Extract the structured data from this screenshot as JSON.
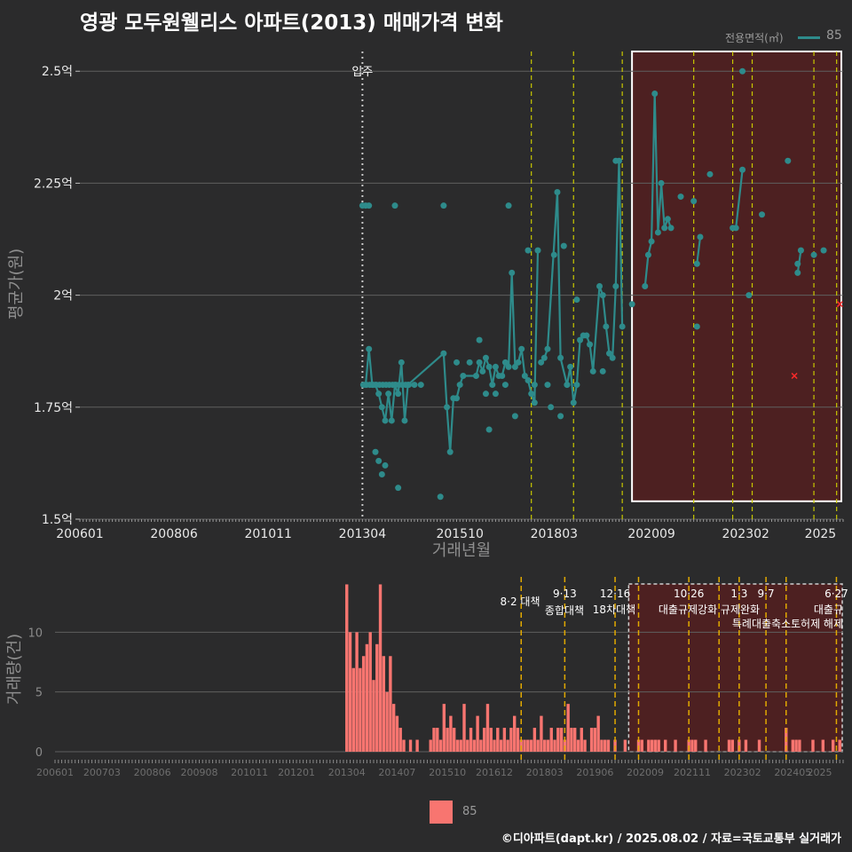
{
  "title": "영광 모두원웰리스 아파트(2013) 매매가격 변화",
  "legend": {
    "title": "전용면적(㎡)",
    "series": "85"
  },
  "footer": "©디아파트(dapt.kr) / 2025.08.02 / 자료=국토교통부 실거래가",
  "colors": {
    "background": "#2b2b2c",
    "line": "#2e8b8b",
    "point": "#2e8b8b",
    "bar": "#f87570",
    "policy_line": "#c8c800",
    "policy_line_bottom": "#e1a900",
    "highlight_fill": "#5a1e1e",
    "highlight_border": "#ffffff",
    "marker": "#ff2a2a"
  },
  "chart_data": [
    {
      "type": "line",
      "title": "",
      "xlabel": "거래년월",
      "ylabel": "평균가(원)",
      "x_tick_labels": [
        "200601",
        "200806",
        "201011",
        "201304",
        "201510",
        "201803",
        "202009",
        "202302",
        "2025"
      ],
      "y_tick_labels": [
        "1.5억",
        "1.75억",
        "2억",
        "2.25억",
        "2.5억"
      ],
      "y_ticks": [
        1.5,
        1.75,
        2.0,
        2.25,
        2.5
      ],
      "ylim": [
        1.5,
        2.55
      ],
      "xlim": [
        "2006-01",
        "2025-08"
      ],
      "grid": true,
      "legend_position": "top-right",
      "annotation": "입주",
      "series": [
        {
          "name": "85",
          "line": [
            [
              "2013-05",
              1.8
            ],
            [
              "2013-06",
              1.88
            ],
            [
              "2013-07",
              1.8
            ],
            [
              "2013-08",
              1.8
            ],
            [
              "2013-09",
              1.78
            ],
            [
              "2013-10",
              1.75
            ],
            [
              "2013-11",
              1.72
            ],
            [
              "2013-12",
              1.78
            ],
            [
              "2014-01",
              1.72
            ],
            [
              "2014-02",
              1.8
            ],
            [
              "2014-03",
              1.78
            ],
            [
              "2014-04",
              1.85
            ],
            [
              "2014-05",
              1.72
            ],
            [
              "2014-06",
              1.8
            ],
            [
              "2015-05",
              1.87
            ],
            [
              "2015-06",
              1.75
            ],
            [
              "2015-07",
              1.65
            ],
            [
              "2015-08",
              1.77
            ],
            [
              "2015-09",
              1.77
            ],
            [
              "2015-10",
              1.8
            ],
            [
              "2015-11",
              1.82
            ],
            [
              "2016-03",
              1.82
            ],
            [
              "2016-04",
              1.85
            ],
            [
              "2016-05",
              1.83
            ],
            [
              "2016-06",
              1.86
            ],
            [
              "2016-07",
              1.84
            ],
            [
              "2016-08",
              1.8
            ],
            [
              "2016-09",
              1.84
            ],
            [
              "2016-10",
              1.82
            ],
            [
              "2016-11",
              1.82
            ],
            [
              "2016-12",
              1.85
            ],
            [
              "2017-01",
              1.84
            ],
            [
              "2017-02",
              2.05
            ],
            [
              "2017-03",
              1.84
            ],
            [
              "2017-04",
              1.85
            ],
            [
              "2017-05",
              1.88
            ],
            [
              "2017-06",
              1.82
            ],
            [
              "2017-07",
              1.81
            ],
            [
              "2017-08",
              1.78
            ],
            [
              "2017-09",
              1.76
            ],
            [
              "2017-10",
              2.1
            ]
          ],
          "line2": [
            [
              "2017-11",
              1.85
            ],
            [
              "2017-12",
              1.86
            ],
            [
              "2018-01",
              1.88
            ],
            [
              "2018-04",
              2.23
            ],
            [
              "2018-05",
              1.86
            ],
            [
              "2018-07",
              1.8
            ],
            [
              "2018-08",
              1.84
            ],
            [
              "2018-09",
              1.76
            ],
            [
              "2018-10",
              1.8
            ],
            [
              "2018-11",
              1.9
            ],
            [
              "2018-12",
              1.91
            ],
            [
              "2019-01",
              1.91
            ],
            [
              "2019-02",
              1.89
            ],
            [
              "2019-03",
              1.83
            ],
            [
              "2019-05",
              2.02
            ],
            [
              "2019-06",
              2.0
            ],
            [
              "2019-07",
              1.93
            ],
            [
              "2019-08",
              1.87
            ],
            [
              "2019-09",
              1.86
            ],
            [
              "2019-10",
              2.02
            ],
            [
              "2019-11",
              2.3
            ],
            [
              "2019-12",
              1.93
            ]
          ],
          "line3": [
            [
              "2020-07",
              2.02
            ],
            [
              "2020-08",
              2.09
            ],
            [
              "2020-09",
              2.12
            ],
            [
              "2020-10",
              2.45
            ],
            [
              "2020-11",
              2.14
            ],
            [
              "2020-12",
              2.25
            ],
            [
              "2021-01",
              2.15
            ],
            [
              "2021-02",
              2.17
            ],
            [
              "2021-03",
              2.15
            ]
          ],
          "line4": [
            [
              "2021-11",
              2.07
            ],
            [
              "2021-12",
              2.13
            ]
          ],
          "line5": [
            [
              "2022-10",
              2.15
            ],
            [
              "2022-11",
              2.15
            ],
            [
              "2023-01",
              2.28
            ]
          ],
          "line6": [
            [
              "2024-06",
              2.05
            ],
            [
              "2024-07",
              2.1
            ]
          ],
          "points_extra": [
            [
              "2013-04",
              2.2
            ],
            [
              "2013-05",
              2.2
            ],
            [
              "2013-06",
              2.2
            ],
            [
              "2014-02",
              2.2
            ],
            [
              "2015-05",
              2.2
            ],
            [
              "2017-01",
              2.2
            ],
            [
              "2017-07",
              2.1
            ],
            [
              "2018-03",
              2.09
            ],
            [
              "2018-06",
              2.11
            ],
            [
              "2018-10",
              1.99
            ],
            [
              "2019-10",
              2.3
            ],
            [
              "2020-03",
              1.98
            ],
            [
              "2021-06",
              2.22
            ],
            [
              "2021-10",
              2.21
            ],
            [
              "2021-11",
              1.93
            ],
            [
              "2022-03",
              2.27
            ],
            [
              "2023-01",
              2.5
            ],
            [
              "2023-03",
              2.0
            ],
            [
              "2023-07",
              2.18
            ],
            [
              "2024-03",
              2.3
            ],
            [
              "2024-06",
              2.07
            ],
            [
              "2024-11",
              2.09
            ],
            [
              "2025-02",
              2.1
            ],
            [
              "2013-08",
              1.65
            ],
            [
              "2013-09",
              1.63
            ],
            [
              "2013-10",
              1.6
            ],
            [
              "2013-11",
              1.62
            ],
            [
              "2014-03",
              1.57
            ],
            [
              "2014-08",
              1.8
            ],
            [
              "2014-10",
              1.8
            ],
            [
              "2015-04",
              1.55
            ],
            [
              "2015-09",
              1.85
            ],
            [
              "2016-01",
              1.85
            ],
            [
              "2016-04",
              1.9
            ],
            [
              "2016-06",
              1.78
            ],
            [
              "2016-09",
              1.78
            ],
            [
              "2016-12",
              1.8
            ],
            [
              "2017-03",
              1.73
            ],
            [
              "2017-09",
              1.8
            ],
            [
              "2018-01",
              1.8
            ],
            [
              "2018-02",
              1.75
            ],
            [
              "2018-05",
              1.73
            ],
            [
              "2018-07",
              1.8
            ],
            [
              "2019-06",
              1.83
            ],
            [
              "2016-07",
              1.7
            ]
          ],
          "cross_markers": [
            [
              "2024-05",
              1.82
            ],
            [
              "2025-07",
              1.98
            ]
          ]
        }
      ],
      "policy_lines_top": [
        "2017-08",
        "2018-09",
        "2019-12",
        "2021-10",
        "2022-10",
        "2023-04",
        "2024-11",
        "2025-06"
      ],
      "highlight_range": [
        "2020-03",
        "2025-08"
      ],
      "highlight_yrange": [
        1.54,
        2.55
      ]
    },
    {
      "type": "bar",
      "title": "",
      "xlabel": "",
      "ylabel": "거래량(건)",
      "y_tick_labels": [
        "0",
        "5",
        "10"
      ],
      "y_ticks": [
        0,
        5,
        10
      ],
      "ylim": [
        0,
        14
      ],
      "x_tick_labels": [
        "200601",
        "200703",
        "200806",
        "200908",
        "201011",
        "201201",
        "201304",
        "201407",
        "201510",
        "201612",
        "201803",
        "201906",
        "202009",
        "202111",
        "202302",
        "202405",
        "2025"
      ],
      "series": [
        {
          "name": "85",
          "values": [
            [
              "2013-04",
              14
            ],
            [
              "2013-05",
              10
            ],
            [
              "2013-06",
              7
            ],
            [
              "2013-07",
              10
            ],
            [
              "2013-08",
              7
            ],
            [
              "2013-09",
              8
            ],
            [
              "2013-10",
              9
            ],
            [
              "2013-11",
              10
            ],
            [
              "2013-12",
              6
            ],
            [
              "2014-01",
              9
            ],
            [
              "2014-02",
              14
            ],
            [
              "2014-03",
              8
            ],
            [
              "2014-04",
              5
            ],
            [
              "2014-05",
              8
            ],
            [
              "2014-06",
              4
            ],
            [
              "2014-07",
              3
            ],
            [
              "2014-08",
              2
            ],
            [
              "2014-09",
              1
            ],
            [
              "2014-11",
              1
            ],
            [
              "2015-01",
              1
            ],
            [
              "2015-05",
              1
            ],
            [
              "2015-06",
              2
            ],
            [
              "2015-07",
              2
            ],
            [
              "2015-08",
              1
            ],
            [
              "2015-09",
              4
            ],
            [
              "2015-10",
              2
            ],
            [
              "2015-11",
              3
            ],
            [
              "2015-12",
              2
            ],
            [
              "2016-01",
              1
            ],
            [
              "2016-02",
              1
            ],
            [
              "2016-03",
              4
            ],
            [
              "2016-04",
              1
            ],
            [
              "2016-05",
              2
            ],
            [
              "2016-06",
              1
            ],
            [
              "2016-07",
              3
            ],
            [
              "2016-08",
              1
            ],
            [
              "2016-09",
              2
            ],
            [
              "2016-10",
              4
            ],
            [
              "2016-11",
              2
            ],
            [
              "2016-12",
              1
            ],
            [
              "2017-01",
              2
            ],
            [
              "2017-02",
              1
            ],
            [
              "2017-03",
              2
            ],
            [
              "2017-04",
              1
            ],
            [
              "2017-05",
              2
            ],
            [
              "2017-06",
              3
            ],
            [
              "2017-07",
              2
            ],
            [
              "2017-08",
              1
            ],
            [
              "2017-09",
              1
            ],
            [
              "2017-10",
              1
            ],
            [
              "2017-11",
              1
            ],
            [
              "2017-12",
              2
            ],
            [
              "2018-01",
              1
            ],
            [
              "2018-02",
              3
            ],
            [
              "2018-03",
              1
            ],
            [
              "2018-04",
              1
            ],
            [
              "2018-05",
              2
            ],
            [
              "2018-06",
              1
            ],
            [
              "2018-07",
              2
            ],
            [
              "2018-08",
              2
            ],
            [
              "2018-09",
              1
            ],
            [
              "2018-10",
              4
            ],
            [
              "2018-11",
              2
            ],
            [
              "2018-12",
              2
            ],
            [
              "2019-01",
              1
            ],
            [
              "2019-02",
              2
            ],
            [
              "2019-03",
              1
            ],
            [
              "2019-05",
              2
            ],
            [
              "2019-06",
              2
            ],
            [
              "2019-07",
              3
            ],
            [
              "2019-08",
              1
            ],
            [
              "2019-09",
              1
            ],
            [
              "2019-10",
              1
            ],
            [
              "2019-12",
              1
            ],
            [
              "2020-03",
              1
            ],
            [
              "2020-07",
              1
            ],
            [
              "2020-08",
              1
            ],
            [
              "2020-10",
              1
            ],
            [
              "2020-11",
              1
            ],
            [
              "2020-12",
              1
            ],
            [
              "2021-01",
              1
            ],
            [
              "2021-03",
              1
            ],
            [
              "2021-06",
              1
            ],
            [
              "2021-10",
              1
            ],
            [
              "2021-11",
              1
            ],
            [
              "2021-12",
              1
            ],
            [
              "2022-03",
              1
            ],
            [
              "2022-10",
              1
            ],
            [
              "2022-11",
              1
            ],
            [
              "2023-01",
              1
            ],
            [
              "2023-03",
              1
            ],
            [
              "2023-07",
              1
            ],
            [
              "2024-03",
              2
            ],
            [
              "2024-05",
              1
            ],
            [
              "2024-06",
              1
            ],
            [
              "2024-07",
              1
            ],
            [
              "2024-11",
              1
            ],
            [
              "2025-02",
              1
            ],
            [
              "2025-05",
              1
            ],
            [
              "2025-07",
              1
            ]
          ]
        }
      ],
      "policy_lines": [
        {
          "date": "2017-08",
          "date_label": "",
          "label": "8·2 대책"
        },
        {
          "date": "2018-09",
          "date_label": "9·13",
          "label": "종합대책"
        },
        {
          "date": "2019-12",
          "date_label": "12·16",
          "label": "18차대책"
        },
        {
          "date": "2020-07",
          "date_label": "",
          "label": ""
        },
        {
          "date": "2021-10",
          "date_label": "10·26",
          "label": "대출규제강화"
        },
        {
          "date": "2022-07",
          "date_label": "",
          "label": ""
        },
        {
          "date": "2023-01",
          "date_label": "1·3",
          "label": "규제완화"
        },
        {
          "date": "2023-09",
          "date_label": "9·7",
          "label": "특례대출축소"
        },
        {
          "date": "2024-03",
          "date_label": "",
          "label": "토허제 해제"
        },
        {
          "date": "2025-06",
          "date_label": "6·27",
          "label": "대출규"
        }
      ],
      "highlight_range": [
        "2020-03",
        "2025-08"
      ]
    }
  ]
}
